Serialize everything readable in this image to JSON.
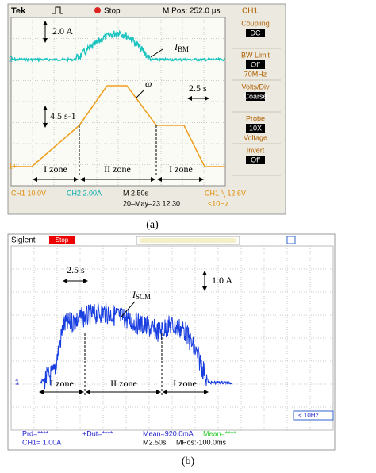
{
  "panel_a": {
    "brand": "Tek",
    "status": "Stop",
    "position": "M Pos: 252.0 μs",
    "channel": "CH1",
    "menu": [
      {
        "title": "Coupling",
        "value": "DC"
      },
      {
        "title": "BW Limit",
        "value": "Off",
        "extra": "70MHz"
      },
      {
        "title": "Volts/Div",
        "value": "Coarse"
      },
      {
        "title": "Probe",
        "value": "10X",
        "extra": "Voltage"
      },
      {
        "title": "Invert",
        "value": "Off"
      }
    ],
    "markers": [
      "2+",
      "1+"
    ],
    "annotations": {
      "current_scale": "2.0 A",
      "current_label": "I",
      "current_sub": "BM",
      "speed_label": "ω",
      "time_scale": "2.5 s",
      "speed_scale": "4.5 s-1",
      "zones": [
        "I zone",
        "II zone",
        "I zone"
      ]
    },
    "footer": {
      "ch1": "CH1  10.0V",
      "ch2": "CH2  2.00A",
      "timebase": "M 2.50s",
      "trigger": "CH1 ╲ 12.6V",
      "date": "20–May–23 12:30",
      "freq": "<10Hz"
    },
    "caption": "(a)"
  },
  "panel_b": {
    "brand": "Siglent",
    "status": "Stop",
    "marker": "1",
    "annotations": {
      "time_scale": "2.5 s",
      "current_scale": "1.0 A",
      "current_label": "I",
      "current_sub": "SCM",
      "zones": [
        "I zone",
        "II zone",
        "I zone"
      ]
    },
    "footer": {
      "prd": "Prd=****",
      "dut": "+Dut=****",
      "mean": "Mean=920.0mA",
      "mean2": "Mean=****",
      "ch1": "CH1= 1.00A",
      "timebase": "M2.50s",
      "mpos": "MPos:-100.0ms",
      "freq": "< 10Hz"
    },
    "caption": "(b)"
  }
}
